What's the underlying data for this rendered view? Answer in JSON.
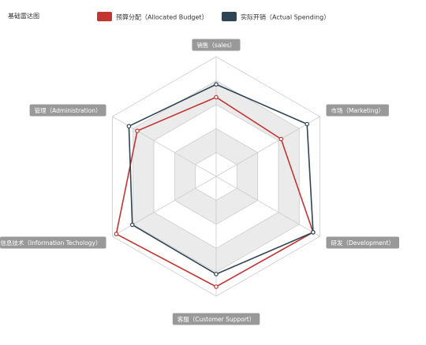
{
  "chart_data": {
    "type": "radar",
    "title": "基础雷达图",
    "legend_placement": "top-center",
    "indicators": [
      {
        "name": "销售（sales）",
        "max": 6500
      },
      {
        "name": "市场（Marketing）",
        "max": 16000
      },
      {
        "name": "研发（Development）",
        "max": 30000
      },
      {
        "name": "客服（Customer Support）",
        "max": 38000
      },
      {
        "name": "信息技术（Information Techology）",
        "max": 52000
      },
      {
        "name": "管理（Administration）",
        "max": 25000
      }
    ],
    "series": [
      {
        "name": "预算分配（Allocated Budget）",
        "color": "#c23531",
        "values": [
          4300,
          10000,
          28000,
          35000,
          50000,
          19000
        ]
      },
      {
        "name": "实际开销（Actual Spending）",
        "color": "#2f4554",
        "values": [
          5000,
          14000,
          28000,
          31000,
          42000,
          21000
        ]
      }
    ],
    "split_areas": [
      "#ffffff",
      "#ebebeb",
      "#ffffff",
      "#ebebeb",
      "#ffffff"
    ],
    "split_line_color": "#cccccc",
    "axis_label_bg": "#999999"
  }
}
